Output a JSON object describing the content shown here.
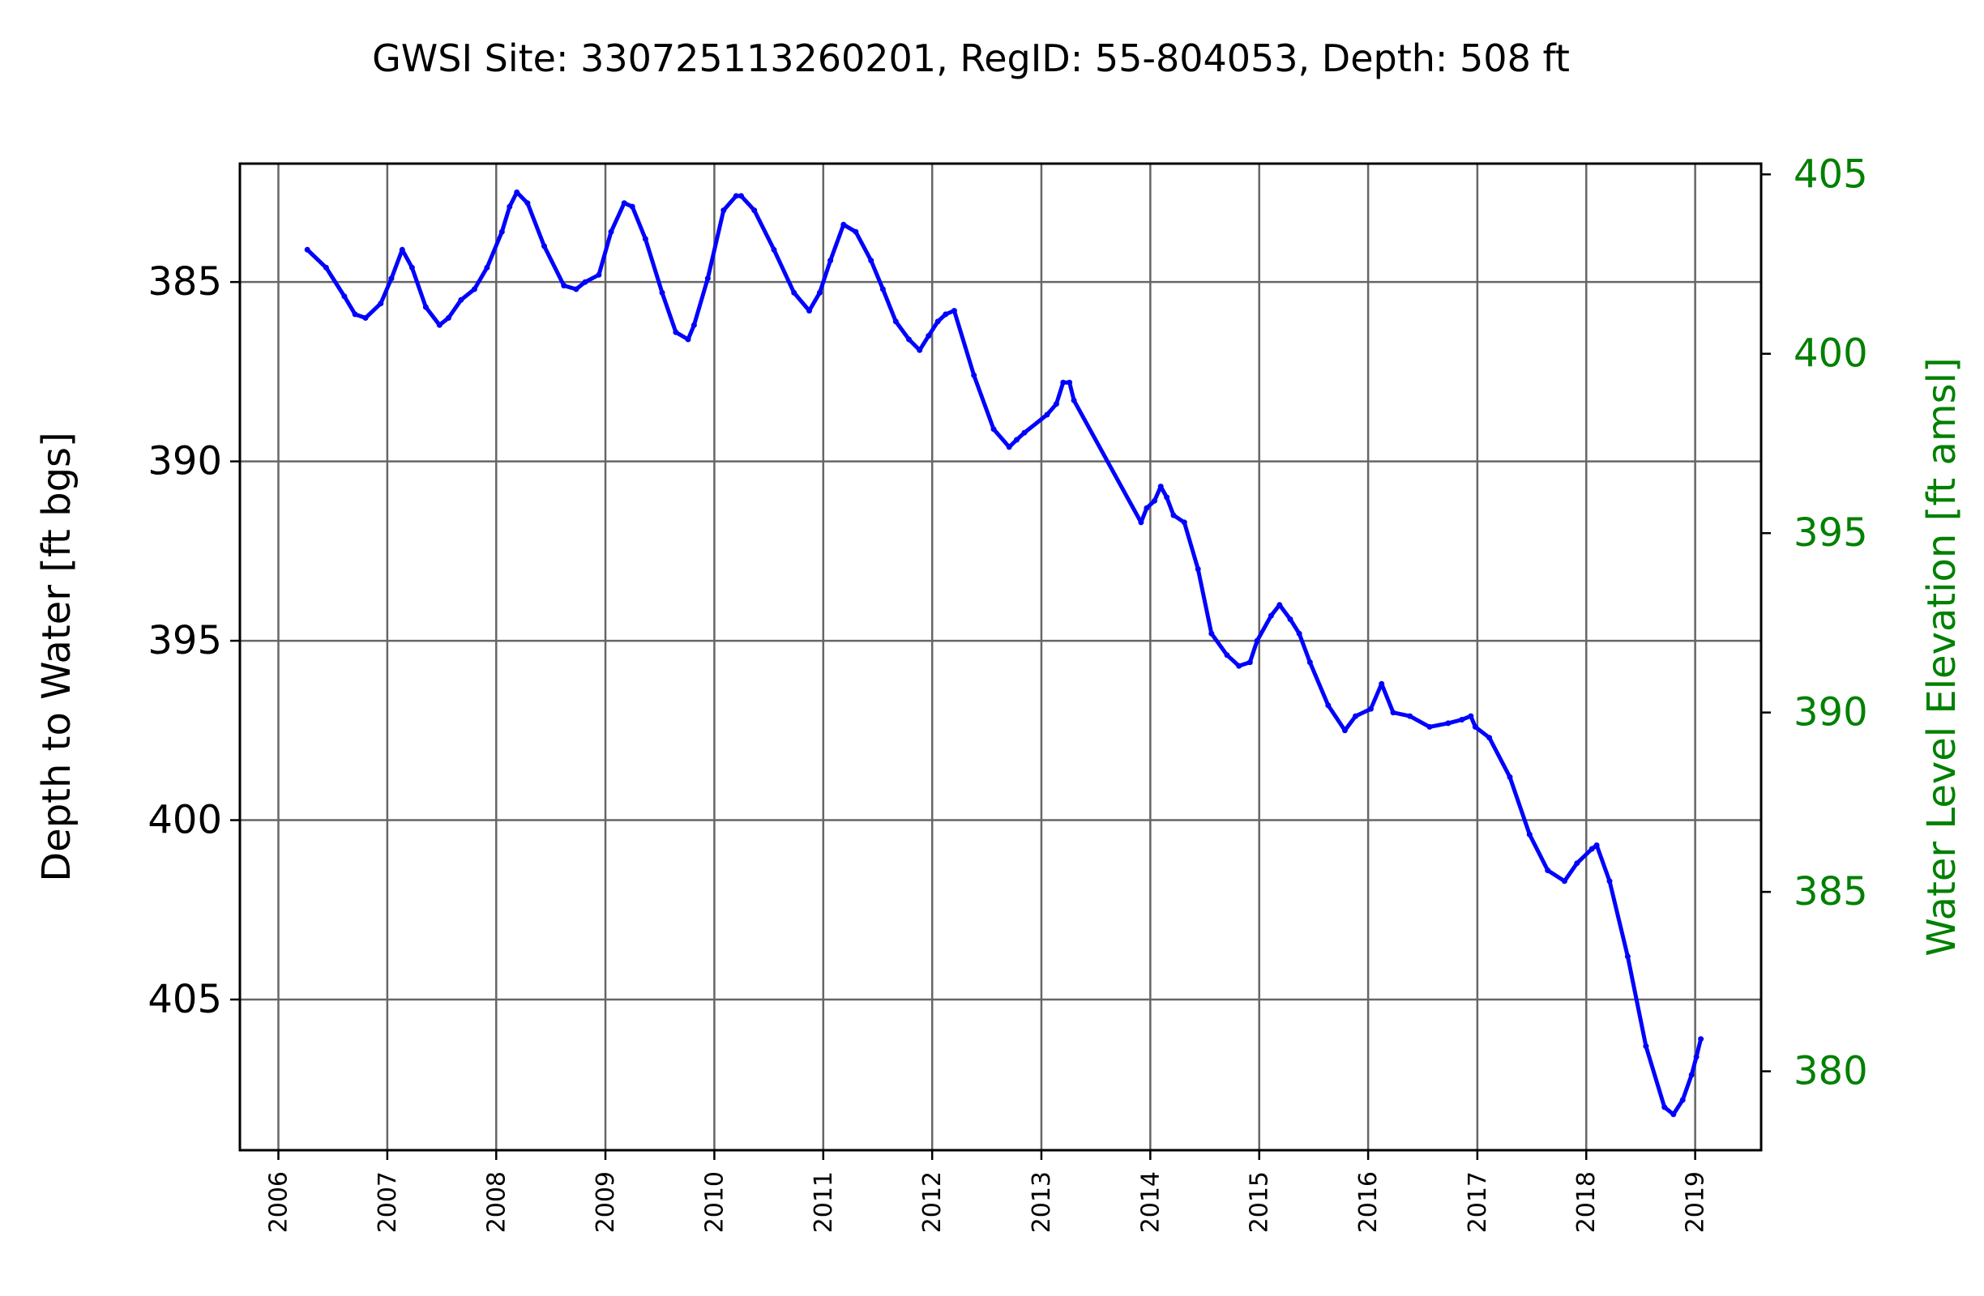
{
  "colors": {
    "line": "#0000ff",
    "right_axis": "#008000",
    "grid": "#666666",
    "text": "#000000"
  },
  "chart_data": {
    "type": "line",
    "title": "GWSI Site: 330725113260201, RegID: 55-804053, Depth: 508 ft",
    "xlabel": "",
    "ylabel": "Depth to Water [ft bgs]",
    "ylabel_right": "Water Level Elevation [ft amsl]",
    "x_type": "date",
    "xlim": [
      "2005-08-25",
      "2019-08-10"
    ],
    "ylim": [
      409.2,
      381.7
    ],
    "ylim_right": [
      377.8,
      405.3
    ],
    "y_inverted": true,
    "grid": true,
    "x_ticks": [
      "2006",
      "2007",
      "2008",
      "2009",
      "2010",
      "2011",
      "2012",
      "2013",
      "2014",
      "2015",
      "2016",
      "2017",
      "2018",
      "2019"
    ],
    "y_ticks": [
      385,
      390,
      395,
      400,
      405
    ],
    "y_ticks_right": [
      380,
      385,
      390,
      395,
      400,
      405
    ],
    "series": [
      {
        "x": [
          "2006-04-08",
          "2006-06-10",
          "2006-08-10",
          "2006-09-15",
          "2006-10-20",
          "2006-12-10",
          "2007-01-15",
          "2007-02-20",
          "2007-03-25",
          "2007-05-10",
          "2007-06-25",
          "2007-07-25",
          "2007-09-05",
          "2007-10-20",
          "2007-12-01",
          "2008-01-20",
          "2008-02-15",
          "2008-03-10",
          "2008-04-15",
          "2008-06-10",
          "2008-08-15",
          "2008-09-25",
          "2008-10-25",
          "2008-12-10",
          "2009-01-20",
          "2009-03-05",
          "2009-04-01",
          "2009-05-15",
          "2009-07-10",
          "2009-08-25",
          "2009-10-05",
          "2009-10-25",
          "2009-12-10",
          "2010-02-01",
          "2010-03-15",
          "2010-04-01",
          "2010-05-15",
          "2010-07-20",
          "2010-09-25",
          "2010-11-15",
          "2010-12-20",
          "2011-01-25",
          "2011-03-10",
          "2011-04-20",
          "2011-06-10",
          "2011-07-20",
          "2011-09-01",
          "2011-10-15",
          "2011-11-20",
          "2011-12-20",
          "2012-01-20",
          "2012-02-15",
          "2012-03-15",
          "2012-05-20",
          "2012-07-25",
          "2012-09-15",
          "2012-10-10",
          "2012-11-05",
          "2013-01-20",
          "2013-02-20",
          "2013-03-15",
          "2013-04-05",
          "2013-04-20",
          "2013-12-01",
          "2013-12-20",
          "2014-01-15",
          "2014-02-05",
          "2014-02-25",
          "2014-03-20",
          "2014-04-25",
          "2014-06-10",
          "2014-07-25",
          "2014-09-15",
          "2014-10-25",
          "2014-12-01",
          "2014-12-25",
          "2015-02-10",
          "2015-03-10",
          "2015-04-15",
          "2015-05-15",
          "2015-06-20",
          "2015-08-20",
          "2015-10-15",
          "2015-11-20",
          "2016-01-10",
          "2016-02-15",
          "2016-03-25",
          "2016-05-20",
          "2016-07-25",
          "2016-09-25",
          "2016-11-10",
          "2016-12-10",
          "2016-12-25",
          "2017-02-10",
          "2017-04-20",
          "2017-06-25",
          "2017-08-25",
          "2017-10-20",
          "2017-12-01",
          "2018-01-20",
          "2018-02-05",
          "2018-03-20",
          "2018-05-20",
          "2018-07-20",
          "2018-09-20",
          "2018-10-20",
          "2018-11-20",
          "2018-12-20",
          "2019-01-05",
          "2019-01-20"
        ],
        "values": [
          384.1,
          384.6,
          385.4,
          385.9,
          386.0,
          385.6,
          384.9,
          384.1,
          384.6,
          385.7,
          386.2,
          386.0,
          385.5,
          385.2,
          384.6,
          383.6,
          382.9,
          382.5,
          382.8,
          384.0,
          385.1,
          385.2,
          385.0,
          384.8,
          383.6,
          382.8,
          382.9,
          383.8,
          385.3,
          386.4,
          386.6,
          386.2,
          384.9,
          383.0,
          382.6,
          382.6,
          383.0,
          384.1,
          385.3,
          385.8,
          385.3,
          384.4,
          383.4,
          383.6,
          384.4,
          385.2,
          386.1,
          386.6,
          386.9,
          386.5,
          386.1,
          385.9,
          385.8,
          387.6,
          389.1,
          389.6,
          389.4,
          389.2,
          388.7,
          388.4,
          387.8,
          387.8,
          388.3,
          391.7,
          391.3,
          391.1,
          390.7,
          391.0,
          391.5,
          391.7,
          393.0,
          394.8,
          395.4,
          395.7,
          395.6,
          395.0,
          394.3,
          394.0,
          394.4,
          394.8,
          395.6,
          396.8,
          397.5,
          397.1,
          396.9,
          396.2,
          397.0,
          397.1,
          397.4,
          397.3,
          397.2,
          397.1,
          397.4,
          397.7,
          398.8,
          400.4,
          401.4,
          401.7,
          401.2,
          400.8,
          400.7,
          401.7,
          403.8,
          406.3,
          408.0,
          408.2,
          407.8,
          407.1,
          406.6,
          406.1
        ]
      }
    ]
  }
}
